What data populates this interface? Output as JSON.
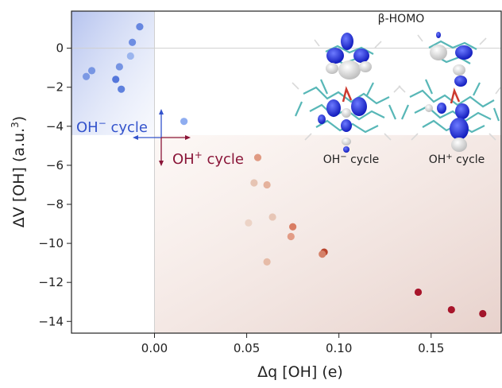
{
  "chart_data": {
    "type": "scatter",
    "xlabel": "Δq [OH] (e)",
    "ylabel": "ΔV [OH] (a.u.",
    "ylabel_sup": "3",
    "ylabel_close": ")",
    "xlim": [
      -0.045,
      0.188
    ],
    "ylim": [
      -14.6,
      1.9
    ],
    "x_ticks": [
      0.0,
      0.05,
      0.1,
      0.15
    ],
    "x_tick_labels": [
      "0.00",
      "0.05",
      "0.10",
      "0.15"
    ],
    "y_ticks": [
      0,
      -2,
      -4,
      -6,
      -8,
      -10,
      -12,
      -14
    ],
    "y_tick_labels": [
      "0",
      "−2",
      "−4",
      "−6",
      "−8",
      "−10",
      "−12",
      "−14"
    ],
    "hline_y": 0,
    "vline_x": 0,
    "regions": {
      "oh_minus": {
        "x": [
          -0.045,
          0.0
        ],
        "y": [
          -4.45,
          1.9
        ],
        "color": "#b9c6ee"
      },
      "oh_plus": {
        "x": [
          0.0,
          0.188
        ],
        "y": [
          -14.6,
          -4.45
        ],
        "color": "#ecdcd6"
      }
    },
    "series": [
      {
        "name": "OH⁻ cycle",
        "color": "#3353cc",
        "points": [
          {
            "x": -0.008,
            "y": 1.1,
            "c": "#6787e0"
          },
          {
            "x": -0.012,
            "y": 0.3,
            "c": "#6d8de2"
          },
          {
            "x": -0.013,
            "y": -0.4,
            "c": "#9bb5ee"
          },
          {
            "x": -0.019,
            "y": -0.95,
            "c": "#7694e3"
          },
          {
            "x": -0.034,
            "y": -1.15,
            "c": "#7896e3"
          },
          {
            "x": -0.037,
            "y": -1.45,
            "c": "#7c99e4"
          },
          {
            "x": -0.021,
            "y": -1.6,
            "c": "#5577db"
          },
          {
            "x": -0.018,
            "y": -2.1,
            "c": "#5f81de"
          },
          {
            "x": 0.016,
            "y": -3.75,
            "c": "#8fadf0"
          }
        ]
      },
      {
        "name": "OH⁺ cycle",
        "color": "#8a1538",
        "points": [
          {
            "x": 0.056,
            "y": -5.6,
            "c": "#e09a83"
          },
          {
            "x": 0.054,
            "y": -6.9,
            "c": "#e6c4b3"
          },
          {
            "x": 0.061,
            "y": -7.0,
            "c": "#e5b29c"
          },
          {
            "x": 0.064,
            "y": -8.65,
            "c": "#e7c6b6"
          },
          {
            "x": 0.051,
            "y": -8.95,
            "c": "#ecd3c6"
          },
          {
            "x": 0.075,
            "y": -9.15,
            "c": "#d97d63"
          },
          {
            "x": 0.074,
            "y": -9.65,
            "c": "#e29c86"
          },
          {
            "x": 0.092,
            "y": -10.45,
            "c": "#b8442c"
          },
          {
            "x": 0.091,
            "y": -10.55,
            "c": "#d48068"
          },
          {
            "x": 0.061,
            "y": -10.95,
            "c": "#e6bba7"
          },
          {
            "x": 0.143,
            "y": -12.5,
            "c": "#a8152b"
          },
          {
            "x": 0.161,
            "y": -13.4,
            "c": "#a8152b"
          },
          {
            "x": 0.178,
            "y": -13.6,
            "c": "#a3162c"
          }
        ]
      }
    ],
    "annotations": {
      "oh_minus_label": "OH",
      "oh_minus_sup": "−",
      "oh_minus_rest": " cycle",
      "oh_plus_label": "OH",
      "oh_plus_sup": "+",
      "oh_plus_rest": " cycle",
      "oh_minus_color": "#3353cc",
      "oh_plus_color": "#8a1538"
    },
    "inset": {
      "title": "β-HOMO",
      "left_label": "OH",
      "left_sup": "−",
      "left_rest": " cycle",
      "right_label": "OH",
      "right_sup": "+",
      "right_rest": " cycle"
    }
  }
}
